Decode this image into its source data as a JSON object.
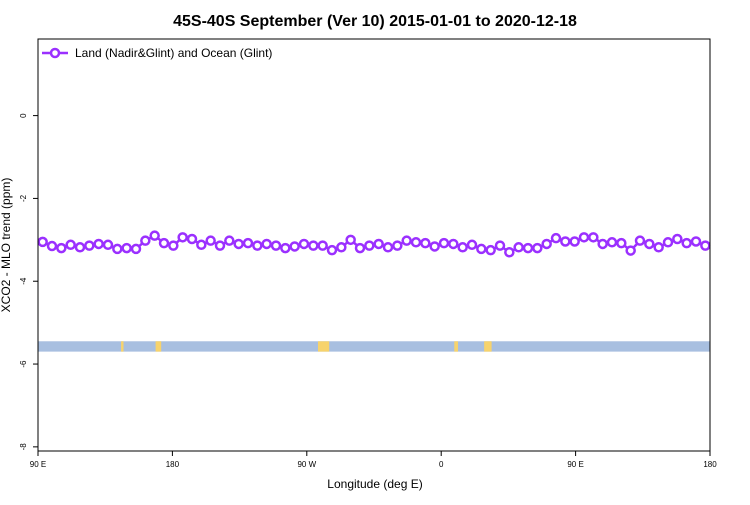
{
  "chart_data": {
    "type": "line",
    "title": "45S-40S September (Ver 10)   2015-01-01 to 2020-12-18",
    "xlabel": "Longitude (deg E)",
    "ylabel": "XCO2 - MLO trend (ppm)",
    "xlim": [
      90,
      450
    ],
    "ylim": [
      -8.1,
      1.85
    ],
    "x_ticks": [
      90,
      162,
      234,
      306,
      378,
      450
    ],
    "x_tick_labels": [
      "90 E",
      "180",
      "90 W",
      "0",
      "90 E",
      "180"
    ],
    "y_ticks": [
      0,
      -2,
      -4,
      -6,
      -8
    ],
    "y_tick_labels": [
      "0",
      "-2",
      "-4",
      "-6",
      "-8"
    ],
    "legend_position": "top-left",
    "grid": false,
    "land_strip": {
      "y_top": -5.45,
      "y_bottom": -5.7,
      "ocean_color": "#a8bfe0",
      "land_color": "#f7d36c",
      "land_x_ranges": [
        [
          134.5,
          135.8
        ],
        [
          153,
          156
        ],
        [
          240,
          246
        ],
        [
          313,
          315
        ],
        [
          329,
          333
        ]
      ]
    },
    "series": [
      {
        "name": "Land (Nadir&Glint) and Ocean (Glint)",
        "color": "#9b30ff",
        "x": [
          92.5,
          97.5,
          102.5,
          107.5,
          112.5,
          117.5,
          122.5,
          127.5,
          132.5,
          137.5,
          142.5,
          147.5,
          152.5,
          157.5,
          162.5,
          167.5,
          172.5,
          177.5,
          182.5,
          187.5,
          192.5,
          197.5,
          202.5,
          207.5,
          212.5,
          217.5,
          222.5,
          227.5,
          232.5,
          237.5,
          242.5,
          247.5,
          252.5,
          257.5,
          262.5,
          267.5,
          272.5,
          277.5,
          282.5,
          287.5,
          292.5,
          297.5,
          302.5,
          307.5,
          312.5,
          317.5,
          322.5,
          327.5,
          332.5,
          337.5,
          342.5,
          347.5,
          352.5,
          357.5,
          362.5,
          367.5,
          372.5,
          377.5,
          382.5,
          387.5,
          392.5,
          397.5,
          402.5,
          407.5,
          412.5,
          417.5,
          422.5,
          427.5,
          432.5,
          437.5,
          442.5,
          447.5
        ],
        "values": [
          -3.05,
          -3.15,
          -3.2,
          -3.12,
          -3.18,
          -3.14,
          -3.1,
          -3.12,
          -3.22,
          -3.2,
          -3.22,
          -3.02,
          -2.9,
          -3.08,
          -3.14,
          -2.94,
          -2.98,
          -3.12,
          -3.02,
          -3.14,
          -3.02,
          -3.1,
          -3.08,
          -3.14,
          -3.1,
          -3.14,
          -3.2,
          -3.16,
          -3.1,
          -3.14,
          -3.14,
          -3.25,
          -3.18,
          -3.0,
          -3.2,
          -3.14,
          -3.1,
          -3.18,
          -3.14,
          -3.02,
          -3.06,
          -3.08,
          -3.16,
          -3.08,
          -3.1,
          -3.18,
          -3.12,
          -3.22,
          -3.25,
          -3.14,
          -3.3,
          -3.18,
          -3.2,
          -3.2,
          -3.1,
          -2.96,
          -3.04,
          -3.04,
          -2.94,
          -2.94,
          -3.1,
          -3.06,
          -3.08,
          -3.26,
          -3.02,
          -3.1,
          -3.18,
          -3.06,
          -2.98,
          -3.08,
          -3.04,
          -3.14
        ]
      }
    ]
  }
}
